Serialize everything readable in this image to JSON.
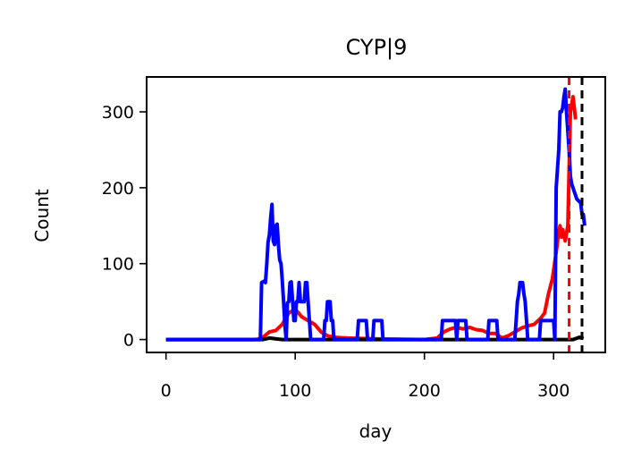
{
  "chart_data": {
    "type": "line",
    "title": "CYP|9",
    "xlabel": "day",
    "ylabel": "Count",
    "xlim": [
      -15,
      340
    ],
    "ylim": [
      -17,
      346
    ],
    "xticks": [
      0,
      100,
      200,
      300
    ],
    "yticks": [
      0,
      100,
      200,
      300
    ],
    "grid": false,
    "legend": "none",
    "series": [
      {
        "color": "#ff0000",
        "style": "solid",
        "points": [
          [
            0,
            0
          ],
          [
            70,
            0
          ],
          [
            75,
            3
          ],
          [
            80,
            10
          ],
          [
            85,
            12
          ],
          [
            90,
            20
          ],
          [
            95,
            35
          ],
          [
            100,
            40
          ],
          [
            105,
            30
          ],
          [
            110,
            25
          ],
          [
            115,
            20
          ],
          [
            120,
            10
          ],
          [
            125,
            5
          ],
          [
            130,
            3
          ],
          [
            140,
            2
          ],
          [
            160,
            1
          ],
          [
            200,
            0
          ],
          [
            210,
            2
          ],
          [
            215,
            10
          ],
          [
            220,
            14
          ],
          [
            225,
            16
          ],
          [
            230,
            14
          ],
          [
            235,
            16
          ],
          [
            240,
            13
          ],
          [
            245,
            12
          ],
          [
            250,
            8
          ],
          [
            255,
            8
          ],
          [
            260,
            2
          ],
          [
            265,
            5
          ],
          [
            270,
            10
          ],
          [
            275,
            15
          ],
          [
            280,
            18
          ],
          [
            285,
            20
          ],
          [
            290,
            28
          ],
          [
            293,
            35
          ],
          [
            296,
            60
          ],
          [
            299,
            80
          ],
          [
            302,
            115
          ],
          [
            304,
            142
          ],
          [
            305,
            150
          ],
          [
            306,
            135
          ],
          [
            307,
            145
          ],
          [
            309,
            130
          ],
          [
            311,
            150
          ],
          [
            313,
            300
          ],
          [
            315,
            320
          ],
          [
            317,
            290
          ]
        ]
      },
      {
        "color": "#000000",
        "style": "solid",
        "points": [
          [
            0,
            0
          ],
          [
            75,
            0
          ],
          [
            80,
            2
          ],
          [
            90,
            0
          ],
          [
            100,
            0
          ],
          [
            200,
            0
          ],
          [
            250,
            0
          ],
          [
            300,
            0
          ],
          [
            310,
            0
          ],
          [
            315,
            0
          ],
          [
            320,
            3
          ],
          [
            322,
            2
          ],
          [
            323,
            1
          ]
        ]
      },
      {
        "color": "#0000ff",
        "style": "solid",
        "points": [
          [
            0,
            0
          ],
          [
            73,
            0
          ],
          [
            74,
            75
          ],
          [
            76,
            77
          ],
          [
            77,
            75
          ],
          [
            78,
            100
          ],
          [
            79,
            128
          ],
          [
            80,
            138
          ],
          [
            81,
            160
          ],
          [
            82,
            178
          ],
          [
            83,
            130
          ],
          [
            84,
            125
          ],
          [
            85,
            150
          ],
          [
            86,
            152
          ],
          [
            87,
            125
          ],
          [
            88,
            105
          ],
          [
            89,
            100
          ],
          [
            90,
            78
          ],
          [
            91,
            50
          ],
          [
            92,
            20
          ],
          [
            93,
            0
          ],
          [
            94,
            48
          ],
          [
            95,
            50
          ],
          [
            96,
            75
          ],
          [
            97,
            76
          ],
          [
            98,
            50
          ],
          [
            99,
            25
          ],
          [
            100,
            25
          ],
          [
            101,
            50
          ],
          [
            102,
            50
          ],
          [
            103,
            75
          ],
          [
            104,
            50
          ],
          [
            105,
            50
          ],
          [
            106,
            50
          ],
          [
            107,
            50
          ],
          [
            108,
            75
          ],
          [
            109,
            75
          ],
          [
            110,
            50
          ],
          [
            111,
            25
          ],
          [
            112,
            0
          ],
          [
            122,
            0
          ],
          [
            123,
            25
          ],
          [
            124,
            25
          ],
          [
            125,
            50
          ],
          [
            126,
            50
          ],
          [
            127,
            50
          ],
          [
            128,
            25
          ],
          [
            129,
            25
          ],
          [
            130,
            0
          ],
          [
            148,
            0
          ],
          [
            149,
            25
          ],
          [
            155,
            25
          ],
          [
            156,
            0
          ],
          [
            160,
            0
          ],
          [
            161,
            25
          ],
          [
            167,
            25
          ],
          [
            168,
            0
          ],
          [
            213,
            0
          ],
          [
            214,
            25
          ],
          [
            224,
            25
          ],
          [
            225,
            0
          ],
          [
            226,
            25
          ],
          [
            232,
            25
          ],
          [
            233,
            0
          ],
          [
            249,
            0
          ],
          [
            250,
            25
          ],
          [
            256,
            25
          ],
          [
            257,
            0
          ],
          [
            270,
            0
          ],
          [
            271,
            25
          ],
          [
            272,
            50
          ],
          [
            273,
            60
          ],
          [
            274,
            75
          ],
          [
            275,
            75
          ],
          [
            276,
            75
          ],
          [
            277,
            60
          ],
          [
            278,
            50
          ],
          [
            279,
            25
          ],
          [
            280,
            0
          ],
          [
            289,
            0
          ],
          [
            290,
            25
          ],
          [
            300,
            25
          ],
          [
            301,
            0
          ],
          [
            302,
            200
          ],
          [
            304,
            250
          ],
          [
            305,
            300
          ],
          [
            306,
            300
          ],
          [
            307,
            305
          ],
          [
            308,
            320
          ],
          [
            309,
            330
          ],
          [
            310,
            300
          ],
          [
            311,
            275
          ],
          [
            312,
            250
          ],
          [
            313,
            215
          ],
          [
            314,
            205
          ],
          [
            315,
            200
          ],
          [
            316,
            195
          ],
          [
            318,
            185
          ],
          [
            321,
            180
          ],
          [
            322,
            165
          ],
          [
            323,
            165
          ],
          [
            324,
            150
          ]
        ]
      }
    ],
    "vlines": [
      {
        "x": 312,
        "color": "#ff0000",
        "style": "dashed"
      },
      {
        "x": 322,
        "color": "#000000",
        "style": "dashed"
      }
    ]
  }
}
